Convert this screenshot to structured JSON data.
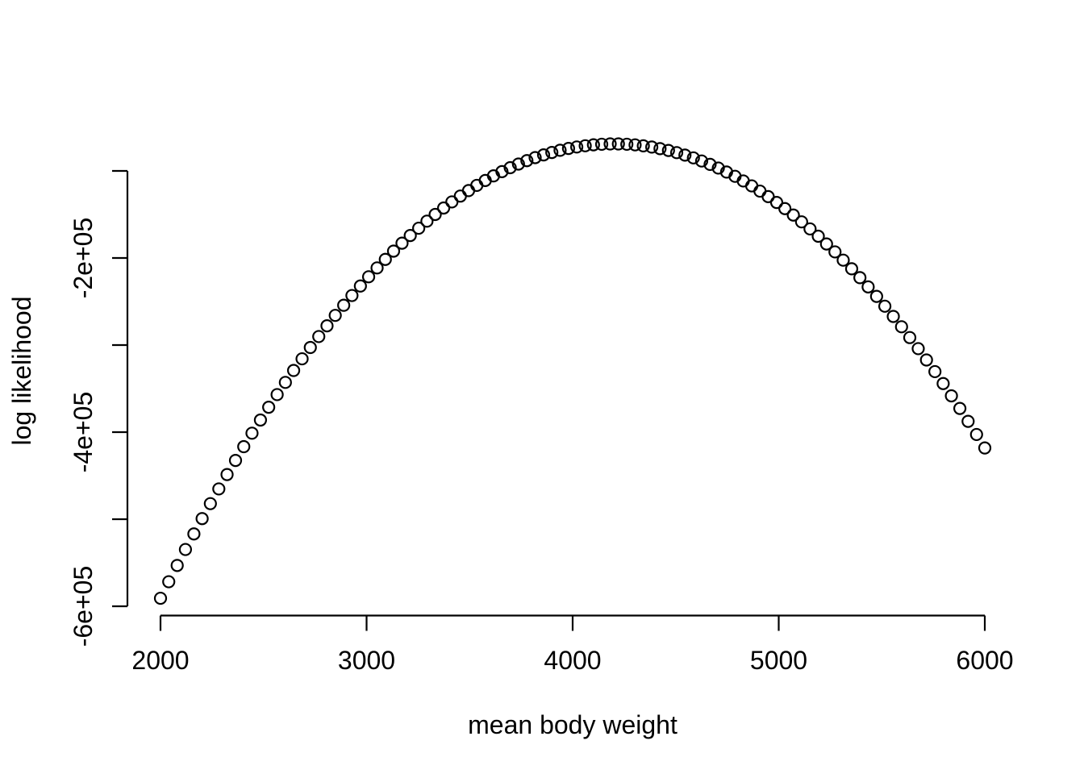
{
  "figure": {
    "background": "#ffffff",
    "foreground": "#000000"
  },
  "chart_data": {
    "type": "scatter",
    "title": "",
    "xlabel": "mean body weight",
    "ylabel": "log likelihood",
    "marker": "open-circle",
    "marker_color": "#000000",
    "axis_color": "#000000",
    "grid": false,
    "legend": false,
    "xlim": [
      2000,
      6000
    ],
    "ylim": [
      -600000,
      -100000
    ],
    "x_tick_values": [
      2000,
      3000,
      4000,
      5000,
      6000
    ],
    "x_tick_labels": [
      "2000",
      "3000",
      "4000",
      "5000",
      "6000"
    ],
    "y_tick_values": [
      -100000,
      -200000,
      -300000,
      -400000,
      -500000,
      -600000
    ],
    "y_tick_labels": [
      "",
      "-2e+05",
      "",
      "-4e+05",
      "",
      "-6e+05"
    ],
    "peak": {
      "x": 4200,
      "y": -69000
    },
    "points": [
      [
        2000,
        -590800
      ],
      [
        2040,
        -571800
      ],
      [
        2081,
        -553100
      ],
      [
        2121,
        -534800
      ],
      [
        2162,
        -516900
      ],
      [
        2202,
        -499300
      ],
      [
        2242,
        -482100
      ],
      [
        2283,
        -465200
      ],
      [
        2323,
        -448700
      ],
      [
        2364,
        -432500
      ],
      [
        2404,
        -416700
      ],
      [
        2444,
        -401200
      ],
      [
        2485,
        -386100
      ],
      [
        2525,
        -371400
      ],
      [
        2566,
        -356900
      ],
      [
        2606,
        -342900
      ],
      [
        2646,
        -329200
      ],
      [
        2687,
        -315800
      ],
      [
        2727,
        -302800
      ],
      [
        2768,
        -290200
      ],
      [
        2808,
        -277900
      ],
      [
        2848,
        -265900
      ],
      [
        2889,
        -254300
      ],
      [
        2929,
        -243100
      ],
      [
        2970,
        -232200
      ],
      [
        3010,
        -221600
      ],
      [
        3051,
        -211400
      ],
      [
        3091,
        -201600
      ],
      [
        3131,
        -192100
      ],
      [
        3172,
        -183000
      ],
      [
        3212,
        -174200
      ],
      [
        3253,
        -165800
      ],
      [
        3293,
        -157700
      ],
      [
        3333,
        -150000
      ],
      [
        3374,
        -142600
      ],
      [
        3414,
        -135600
      ],
      [
        3455,
        -128900
      ],
      [
        3495,
        -122600
      ],
      [
        3535,
        -116600
      ],
      [
        3576,
        -111000
      ],
      [
        3616,
        -105700
      ],
      [
        3657,
        -100800
      ],
      [
        3697,
        -96300
      ],
      [
        3737,
        -92100
      ],
      [
        3778,
        -88200
      ],
      [
        3818,
        -84700
      ],
      [
        3859,
        -81600
      ],
      [
        3899,
        -78800
      ],
      [
        3939,
        -76300
      ],
      [
        3980,
        -74200
      ],
      [
        4020,
        -72500
      ],
      [
        4061,
        -71100
      ],
      [
        4101,
        -70000
      ],
      [
        4141,
        -69400
      ],
      [
        4182,
        -69000
      ],
      [
        4222,
        -69000
      ],
      [
        4263,
        -69400
      ],
      [
        4303,
        -70100
      ],
      [
        4343,
        -71200
      ],
      [
        4384,
        -72600
      ],
      [
        4424,
        -74400
      ],
      [
        4465,
        -76500
      ],
      [
        4505,
        -79000
      ],
      [
        4545,
        -81800
      ],
      [
        4586,
        -85000
      ],
      [
        4626,
        -88600
      ],
      [
        4667,
        -92500
      ],
      [
        4707,
        -96700
      ],
      [
        4747,
        -101300
      ],
      [
        4788,
        -106200
      ],
      [
        4828,
        -111500
      ],
      [
        4869,
        -117200
      ],
      [
        4909,
        -123200
      ],
      [
        4949,
        -129500
      ],
      [
        4990,
        -136200
      ],
      [
        5030,
        -143300
      ],
      [
        5071,
        -150700
      ],
      [
        5111,
        -158500
      ],
      [
        5152,
        -166600
      ],
      [
        5192,
        -175000
      ],
      [
        5232,
        -183900
      ],
      [
        5273,
        -193000
      ],
      [
        5313,
        -202500
      ],
      [
        5354,
        -212400
      ],
      [
        5394,
        -222600
      ],
      [
        5434,
        -233200
      ],
      [
        5475,
        -244100
      ],
      [
        5515,
        -255400
      ],
      [
        5556,
        -267100
      ],
      [
        5596,
        -279000
      ],
      [
        5636,
        -291400
      ],
      [
        5677,
        -304100
      ],
      [
        5717,
        -317100
      ],
      [
        5758,
        -330500
      ],
      [
        5798,
        -344200
      ],
      [
        5838,
        -358300
      ],
      [
        5879,
        -372800
      ],
      [
        5919,
        -387600
      ],
      [
        5960,
        -402700
      ],
      [
        6000,
        -418200
      ]
    ]
  }
}
